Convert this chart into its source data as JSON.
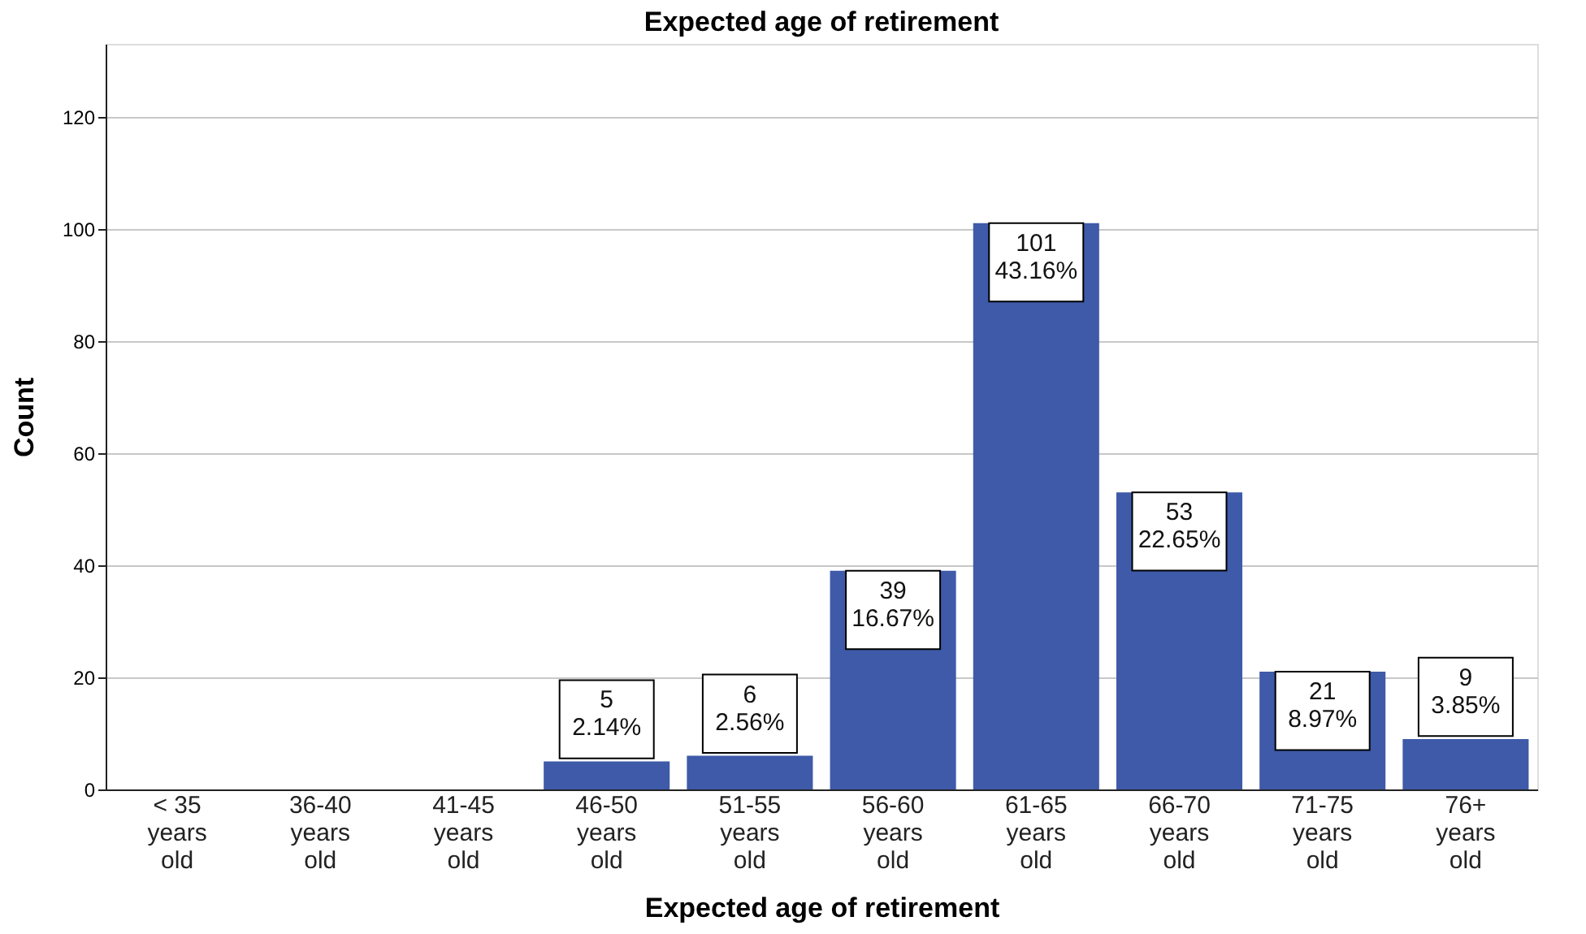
{
  "chart_data": {
    "type": "bar",
    "title": "Expected age of retirement",
    "xlabel": "Expected age of retirement",
    "ylabel": "Count",
    "categories": [
      "< 35 years old",
      "36-40 years old",
      "41-45 years old",
      "46-50 years old",
      "51-55 years old",
      "56-60 years old",
      "61-65 years old",
      "66-70 years old",
      "71-75 years old",
      "76+ years old"
    ],
    "values": [
      0,
      0,
      0,
      5,
      6,
      39,
      101,
      53,
      21,
      9
    ],
    "value_labels": [
      null,
      null,
      null,
      "5\n2.14%",
      "6\n2.56%",
      "39\n16.67%",
      "101\n43.16%",
      "53\n22.65%",
      "21\n8.97%",
      "9\n3.85%"
    ],
    "color": "#3e5aa8",
    "ylim": [
      0,
      133
    ],
    "yticks": [
      0,
      20,
      40,
      60,
      80,
      100,
      120
    ],
    "grid": "y"
  }
}
